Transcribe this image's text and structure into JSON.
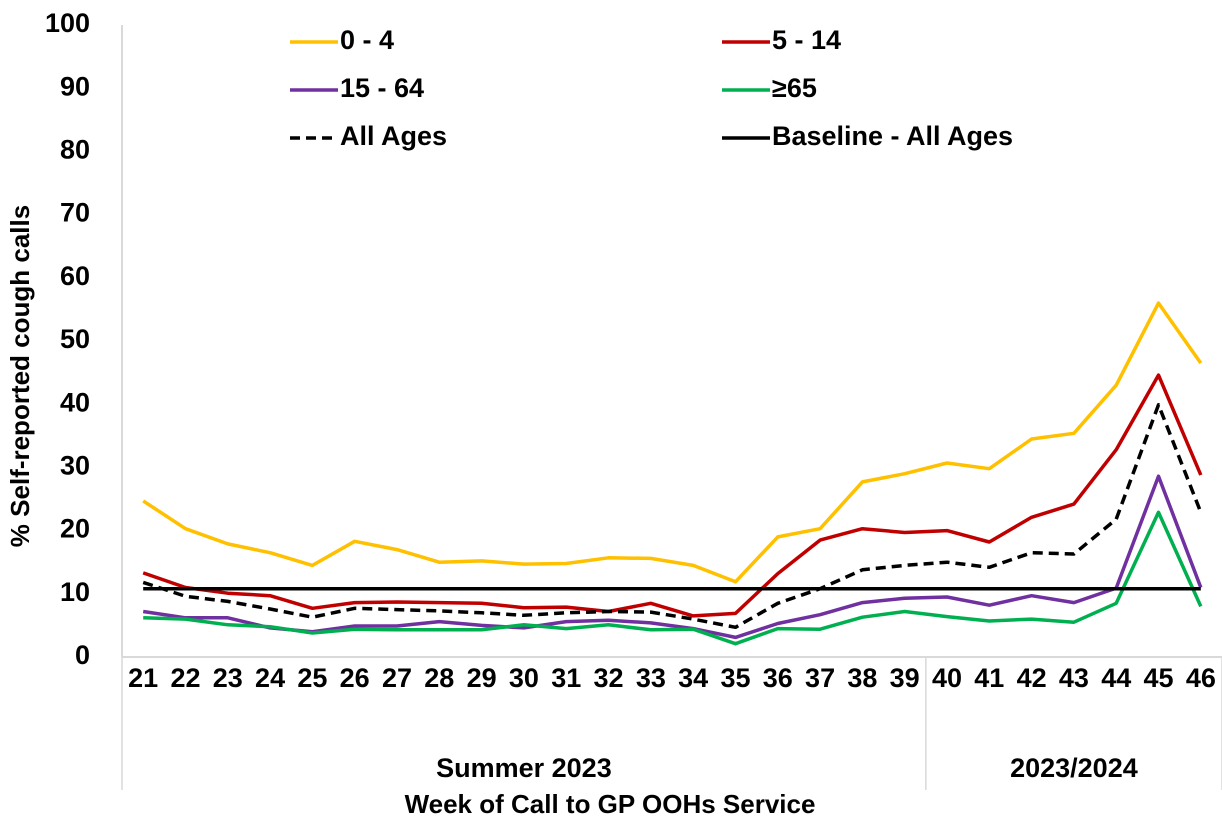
{
  "chart_data": {
    "type": "line",
    "y_label": "% Self-reported cough calls",
    "x_label": "Week of Call to GP OOHs Service",
    "categories": [
      "21",
      "22",
      "23",
      "24",
      "25",
      "26",
      "27",
      "28",
      "29",
      "30",
      "31",
      "32",
      "33",
      "34",
      "35",
      "36",
      "37",
      "38",
      "39",
      "40",
      "41",
      "42",
      "43",
      "44",
      "45",
      "46"
    ],
    "x_groups": [
      {
        "label": "Summer 2023",
        "span": 19
      },
      {
        "label": "2023/2024",
        "span": 7
      }
    ],
    "ylim": [
      0,
      100
    ],
    "yticks": [
      0,
      10,
      20,
      30,
      40,
      50,
      60,
      70,
      80,
      90,
      100
    ],
    "series": [
      {
        "name": "0 - 4",
        "color": "#FFC000",
        "values": [
          24.7,
          20.3,
          17.9,
          16.5,
          14.5,
          18.3,
          17,
          15,
          15.2,
          14.7,
          14.8,
          15.7,
          15.6,
          14.5,
          11.9,
          19,
          20.3,
          27.7,
          29,
          30.7,
          29.8,
          34.5,
          35.4,
          43,
          56,
          46.5
        ]
      },
      {
        "name": "5 - 14",
        "color": "#C00000",
        "values": [
          13.3,
          11,
          10.1,
          9.7,
          7.7,
          8.6,
          8.7,
          8.6,
          8.5,
          7.8,
          7.9,
          7.2,
          8.5,
          6.5,
          6.9,
          13.2,
          18.5,
          20.3,
          19.7,
          20,
          18.2,
          22.1,
          24.2,
          32.8,
          44.6,
          28.8
        ]
      },
      {
        "name": "15 - 64",
        "color": "#7030A0",
        "values": [
          7.2,
          6.2,
          6.2,
          4.6,
          4,
          4.9,
          4.9,
          5.6,
          5,
          4.6,
          5.6,
          5.8,
          5.4,
          4.5,
          3.1,
          5.3,
          6.7,
          8.6,
          9.3,
          9.5,
          8.2,
          9.7,
          8.6,
          10.9,
          28.6,
          11
        ]
      },
      {
        "name": "≥65",
        "color": "#00B050",
        "values": [
          6.2,
          6,
          5.1,
          4.8,
          3.8,
          4.4,
          4.3,
          4.3,
          4.3,
          5.1,
          4.5,
          5.1,
          4.3,
          4.4,
          2.1,
          4.5,
          4.4,
          6.3,
          7.2,
          6.4,
          5.7,
          6,
          5.5,
          8.5,
          22.9,
          8
        ]
      },
      {
        "name": "All Ages",
        "color": "#000000",
        "dash": true,
        "values": [
          11.8,
          9.6,
          8.8,
          7.6,
          6.3,
          7.7,
          7.5,
          7.3,
          7,
          6.6,
          7,
          7.2,
          7.1,
          6,
          4.7,
          8.5,
          10.8,
          13.8,
          14.5,
          15,
          14.2,
          16.5,
          16.3,
          21.8,
          39.9,
          22.9
        ]
      },
      {
        "name": "Baseline - All Ages",
        "color": "#000000",
        "values": [
          10.8,
          10.8,
          10.8,
          10.8,
          10.8,
          10.8,
          10.8,
          10.8,
          10.8,
          10.8,
          10.8,
          10.8,
          10.8,
          10.8,
          10.8,
          10.8,
          10.8,
          10.8,
          10.8,
          10.8,
          10.8,
          10.8,
          10.8,
          10.8,
          10.8,
          10.8
        ]
      }
    ]
  }
}
